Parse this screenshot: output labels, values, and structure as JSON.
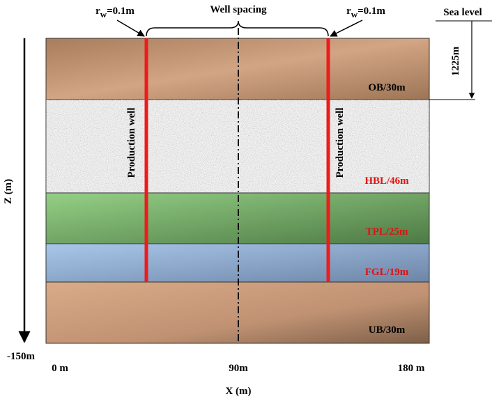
{
  "labels": {
    "rw_left": {
      "symbol": "r",
      "subscript": "w",
      "value": "=0.1m"
    },
    "rw_right": {
      "symbol": "r",
      "subscript": "w",
      "value": "=0.1m"
    },
    "well_spacing": "Well spacing",
    "sea_level": "Sea level",
    "depth": "1225m",
    "z_axis": "Z (m)",
    "z_end": "-150m",
    "x_axis": "X (m)",
    "x_ticks": [
      "0 m",
      "90m",
      "180 m"
    ]
  },
  "layers": [
    {
      "label": "OB/30m"
    },
    {
      "label": "HBL/46m"
    },
    {
      "label": "TPL/25m"
    },
    {
      "label": "FGL/19m"
    },
    {
      "label": "UB/30m"
    }
  ],
  "wells": [
    {
      "label": "Production well"
    },
    {
      "label": "Production well"
    }
  ]
}
